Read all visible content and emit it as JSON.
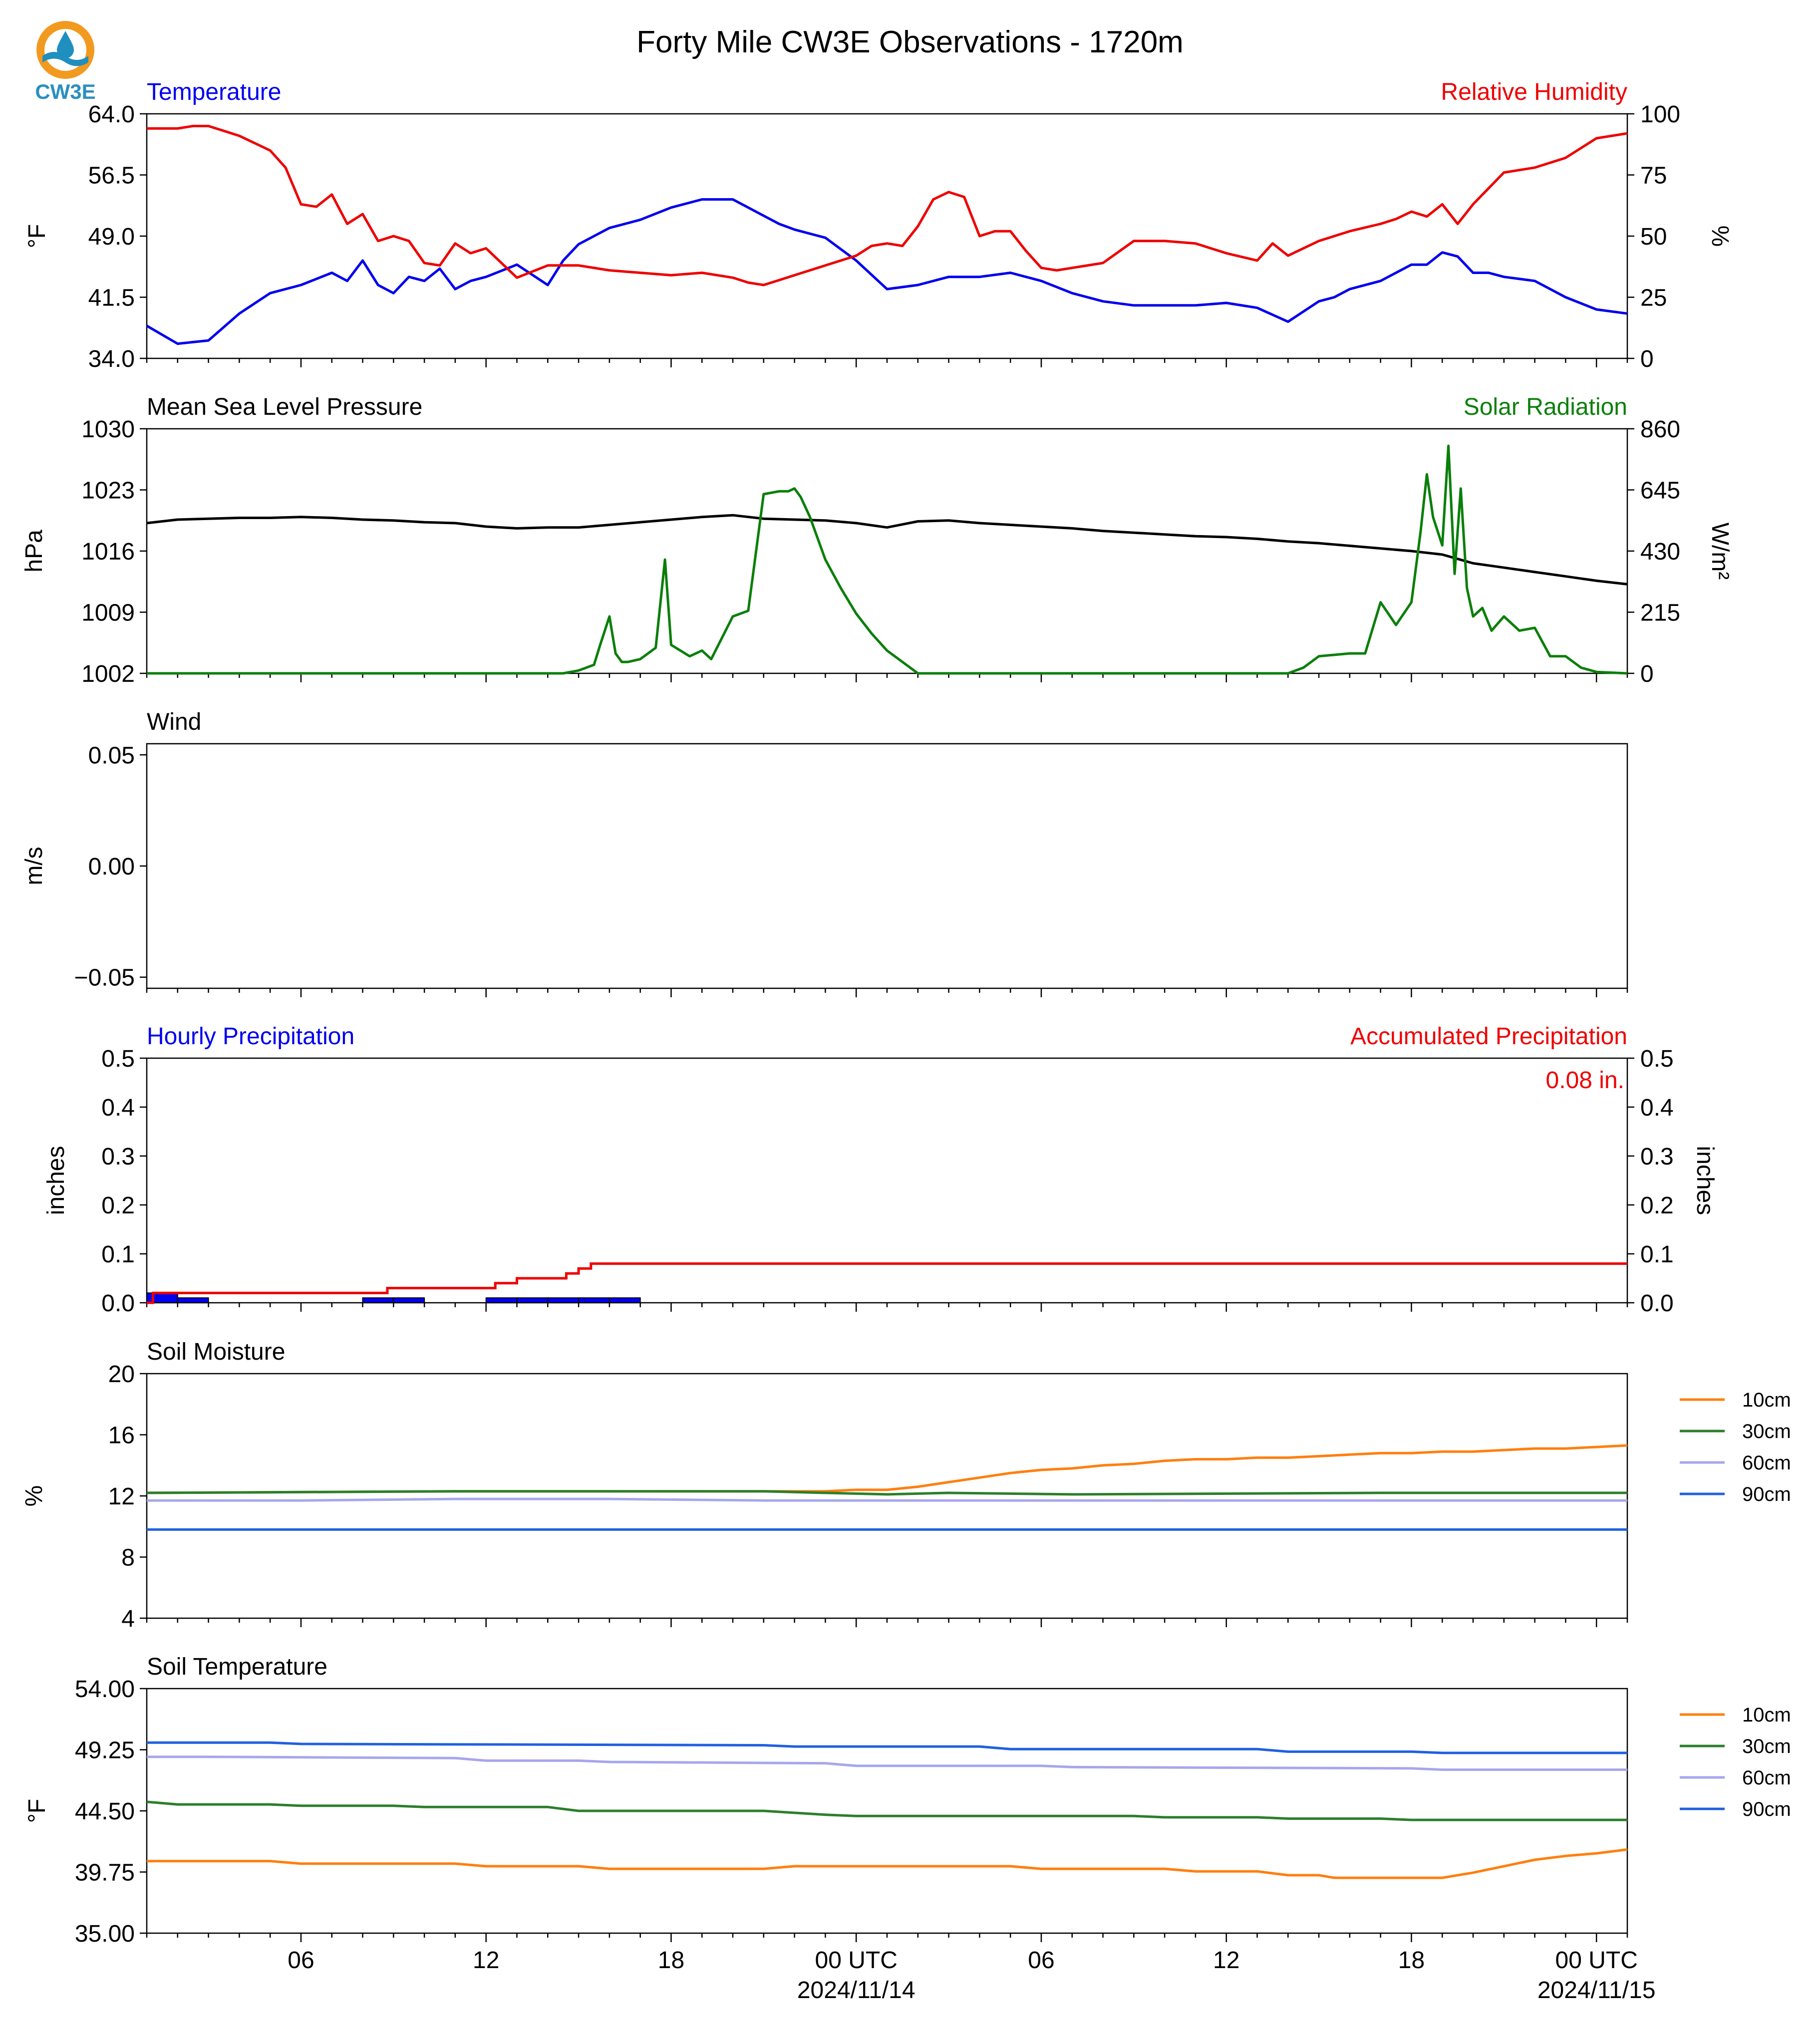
{
  "figure_title": "Forty Mile CW3E Observations - 1720m",
  "logo": {
    "text": "CW3E",
    "icon": "water-drop-sun-logo",
    "ring_color": "#f29a1f",
    "wave_color": "#1f8fbf",
    "text_color": "#2a8fbf"
  },
  "x_axis": {
    "start_hour_offset": 0,
    "end_hour_offset": 48,
    "tick_labels": [
      {
        "hour": 5,
        "label": "06"
      },
      {
        "hour": 11,
        "label": "12"
      },
      {
        "hour": 17,
        "label": "18"
      },
      {
        "hour": 23,
        "label": "00 UTC",
        "sublabel": "2024/11/14"
      },
      {
        "hour": 29,
        "label": "06"
      },
      {
        "hour": 35,
        "label": "12"
      },
      {
        "hour": 41,
        "label": "18"
      },
      {
        "hour": 47,
        "label": "00 UTC",
        "sublabel": "2024/11/15"
      }
    ]
  },
  "chart_data": [
    {
      "type": "line",
      "id": "temperature-rh",
      "title_left": "Temperature",
      "title_left_color": "#0000ee",
      "title_right": "Relative Humidity",
      "title_right_color": "#ee0000",
      "ylabel_left": "°F",
      "ylabel_right": "%",
      "ylim_left": [
        34.0,
        64.0
      ],
      "yticks_left": [
        "34.0",
        "41.5",
        "49.0",
        "56.5",
        "64.0"
      ],
      "ylim_right": [
        0,
        100
      ],
      "yticks_right": [
        "0",
        "25",
        "50",
        "75",
        "100"
      ],
      "series": [
        {
          "axis": "left",
          "color": "#0000ee",
          "x": [
            0,
            1,
            2,
            3,
            4,
            5,
            6,
            6.5,
            7,
            7.5,
            8,
            8.5,
            9,
            9.5,
            10,
            10.5,
            11,
            12,
            13,
            13.5,
            14,
            15,
            16,
            17,
            18,
            19,
            19.5,
            20,
            20.5,
            21,
            22,
            23,
            24,
            25,
            26,
            27,
            28,
            29,
            30,
            31,
            32,
            33,
            34,
            35,
            36,
            37,
            38,
            38.5,
            39,
            40,
            40.5,
            41,
            41.5,
            42,
            42.5,
            43,
            43.5,
            44,
            45,
            46,
            47,
            48
          ],
          "y": [
            38.0,
            35.8,
            36.2,
            39.5,
            42.0,
            43.0,
            44.5,
            43.5,
            46.0,
            43.0,
            42.0,
            44.0,
            43.5,
            45.0,
            42.5,
            43.5,
            44.0,
            45.5,
            43.0,
            46.0,
            48.0,
            50.0,
            51.0,
            52.5,
            53.5,
            53.5,
            52.5,
            51.5,
            50.5,
            49.8,
            48.8,
            46.0,
            42.5,
            43.0,
            44.0,
            44.0,
            44.5,
            43.5,
            42.0,
            41.0,
            40.5,
            40.5,
            40.5,
            40.8,
            40.2,
            38.5,
            41.0,
            41.5,
            42.5,
            43.5,
            44.5,
            45.5,
            45.5,
            47.0,
            46.5,
            44.5,
            44.5,
            44.0,
            43.5,
            41.5,
            40.0,
            39.5
          ]
        },
        {
          "axis": "right",
          "color": "#ee0000",
          "x": [
            0,
            1,
            1.5,
            2,
            2.5,
            3,
            3.5,
            4,
            4.5,
            5,
            5.5,
            6,
            6.5,
            7,
            7.5,
            8,
            8.5,
            9,
            9.5,
            10,
            10.5,
            11,
            12,
            13,
            14,
            15,
            16,
            17,
            18,
            19,
            19.5,
            20,
            20.5,
            21,
            22,
            23,
            23.5,
            24,
            24.5,
            25,
            25.5,
            26,
            26.5,
            27,
            27.5,
            28,
            28.5,
            29,
            29.5,
            30,
            31,
            32,
            33,
            34,
            35,
            36,
            36.5,
            37,
            38,
            39,
            40,
            40.5,
            41,
            41.5,
            42,
            42.5,
            43,
            44,
            45,
            46,
            47,
            48
          ],
          "y": [
            94,
            94,
            95,
            95,
            93,
            91,
            88,
            85,
            78,
            63,
            62,
            67,
            55,
            59,
            48,
            50,
            48,
            39,
            38,
            47,
            43,
            45,
            33,
            38,
            38,
            36,
            35,
            34,
            35,
            33,
            31,
            30,
            32,
            34,
            38,
            42,
            46,
            47,
            46,
            54,
            65,
            68,
            66,
            50,
            52,
            52,
            44,
            37,
            36,
            37,
            39,
            48,
            48,
            47,
            43,
            40,
            47,
            42,
            48,
            52,
            55,
            57,
            60,
            58,
            63,
            55,
            63,
            76,
            78,
            82,
            90,
            92
          ]
        }
      ]
    },
    {
      "type": "line",
      "id": "pressure-solar",
      "title_left": "Mean Sea Level Pressure",
      "title_left_color": "#000000",
      "title_right": "Solar Radiation",
      "title_right_color": "#0a7f0a",
      "ylabel_left": "hPa",
      "ylabel_right": "W/m²",
      "ylim_left": [
        1002,
        1030
      ],
      "yticks_left": [
        "1002",
        "1009",
        "1016",
        "1023",
        "1030"
      ],
      "ylim_right": [
        0,
        860
      ],
      "yticks_right": [
        "0",
        "215",
        "430",
        "645",
        "860"
      ],
      "series": [
        {
          "axis": "left",
          "color": "#000000",
          "x": [
            0,
            1,
            2,
            3,
            4,
            5,
            6,
            7,
            8,
            9,
            10,
            11,
            12,
            13,
            14,
            15,
            16,
            17,
            18,
            19,
            20,
            21,
            22,
            23,
            24,
            25,
            26,
            27,
            28,
            29,
            30,
            31,
            32,
            33,
            34,
            35,
            36,
            37,
            38,
            39,
            40,
            41,
            42,
            43,
            44,
            45,
            46,
            47,
            48
          ],
          "y": [
            1019.2,
            1019.6,
            1019.7,
            1019.8,
            1019.8,
            1019.9,
            1019.8,
            1019.6,
            1019.5,
            1019.3,
            1019.2,
            1018.8,
            1018.6,
            1018.7,
            1018.7,
            1019.0,
            1019.3,
            1019.6,
            1019.9,
            1020.1,
            1019.7,
            1019.6,
            1019.5,
            1019.2,
            1018.7,
            1019.4,
            1019.5,
            1019.2,
            1019.0,
            1018.8,
            1018.6,
            1018.3,
            1018.1,
            1017.9,
            1017.7,
            1017.6,
            1017.4,
            1017.1,
            1016.9,
            1016.6,
            1016.3,
            1016.0,
            1015.6,
            1014.6,
            1014.1,
            1013.6,
            1013.1,
            1012.6,
            1012.2
          ]
        },
        {
          "axis": "right",
          "color": "#0a7f0a",
          "x": [
            0,
            13.5,
            14,
            14.5,
            14.7,
            15,
            15.2,
            15.4,
            15.6,
            16,
            16.5,
            16.8,
            17,
            17.3,
            17.6,
            18,
            18.3,
            19,
            19.5,
            20,
            20.5,
            20.8,
            21,
            21.2,
            21.5,
            22,
            22.5,
            23,
            23.5,
            24,
            25,
            30,
            36,
            37,
            37.5,
            38,
            39,
            39.5,
            40,
            40.5,
            41,
            41.3,
            41.5,
            41.7,
            42,
            42.2,
            42.4,
            42.6,
            42.8,
            43,
            43.3,
            43.6,
            44,
            44.5,
            45,
            45.5,
            46,
            46.5,
            47,
            48
          ],
          "y": [
            0,
            0,
            10,
            30,
            100,
            200,
            70,
            40,
            40,
            50,
            90,
            400,
            100,
            80,
            60,
            80,
            50,
            200,
            220,
            630,
            640,
            640,
            650,
            620,
            550,
            400,
            300,
            210,
            140,
            80,
            0,
            0,
            0,
            0,
            20,
            60,
            70,
            70,
            250,
            170,
            250,
            500,
            700,
            550,
            450,
            800,
            350,
            650,
            300,
            200,
            230,
            150,
            200,
            150,
            160,
            60,
            60,
            20,
            5,
            0
          ]
        }
      ]
    },
    {
      "type": "line",
      "id": "wind",
      "title_left": "Wind",
      "ylabel_left": "m/s",
      "ylim_left": [
        -0.055,
        0.055
      ],
      "yticks_left": [
        "−0.05",
        "0.00",
        "0.05"
      ],
      "series": []
    },
    {
      "type": "bar",
      "id": "precipitation",
      "title_left": "Hourly Precipitation",
      "title_left_color": "#0000ee",
      "title_right": "Accumulated Precipitation",
      "title_right_color": "#ee0000",
      "ylabel_left": "inches",
      "ylabel_right": "inches",
      "ylim_left": [
        0,
        0.5
      ],
      "yticks_left": [
        "0.0",
        "0.1",
        "0.2",
        "0.3",
        "0.4",
        "0.5"
      ],
      "ylim_right": [
        0,
        0.5
      ],
      "yticks_right": [
        "0.0",
        "0.1",
        "0.2",
        "0.3",
        "0.4",
        "0.5"
      ],
      "annotation": "0.08 in.",
      "annotation_color": "#ee0000",
      "hourly_bars": {
        "color": "#0000ee",
        "edge_color": "#000000",
        "x": [
          0,
          1,
          7,
          8,
          11,
          12,
          13,
          14,
          15
        ],
        "values": [
          0.02,
          0.01,
          0.01,
          0.01,
          0.01,
          0.01,
          0.01,
          0.01,
          0.01
        ]
      },
      "accumulated": {
        "color": "#ee0000",
        "x": [
          0,
          0.2,
          7.4,
          7.8,
          11.3,
          12,
          13.2,
          13.6,
          14.0,
          14.4,
          48
        ],
        "y": [
          0.0,
          0.02,
          0.02,
          0.03,
          0.04,
          0.05,
          0.05,
          0.06,
          0.07,
          0.08,
          0.08
        ]
      }
    },
    {
      "type": "line",
      "id": "soil-moisture",
      "title_left": "Soil Moisture",
      "ylabel_left": "%",
      "ylim_left": [
        4,
        20
      ],
      "yticks_left": [
        "4",
        "8",
        "12",
        "16",
        "20"
      ],
      "legend_placement": "right",
      "series": [
        {
          "name": "10cm",
          "color": "#ff7f0e",
          "x": [
            0,
            10,
            20,
            22,
            23,
            24,
            25,
            26,
            27,
            28,
            29,
            30,
            31,
            32,
            33,
            34,
            35,
            36,
            37,
            38,
            39,
            40,
            41,
            42,
            43,
            44,
            45,
            46,
            47,
            48
          ],
          "y": [
            12.2,
            12.3,
            12.3,
            12.3,
            12.4,
            12.4,
            12.6,
            12.9,
            13.2,
            13.5,
            13.7,
            13.8,
            14.0,
            14.1,
            14.3,
            14.4,
            14.4,
            14.5,
            14.5,
            14.6,
            14.7,
            14.8,
            14.8,
            14.9,
            14.9,
            15.0,
            15.1,
            15.1,
            15.2,
            15.3
          ]
        },
        {
          "name": "30cm",
          "color": "#2a7f2a",
          "x": [
            0,
            10,
            20,
            22,
            24,
            26,
            30,
            40,
            48
          ],
          "y": [
            12.2,
            12.3,
            12.3,
            12.2,
            12.1,
            12.2,
            12.1,
            12.2,
            12.2
          ]
        },
        {
          "name": "60cm",
          "color": "#a6a6ee",
          "x": [
            0,
            5,
            10,
            15,
            20,
            25,
            30,
            35,
            40,
            48
          ],
          "y": [
            11.7,
            11.7,
            11.8,
            11.8,
            11.7,
            11.7,
            11.7,
            11.7,
            11.7,
            11.7
          ]
        },
        {
          "name": "90cm",
          "color": "#2060e0",
          "x": [
            0,
            12,
            14,
            20,
            25,
            30,
            35,
            40,
            48
          ],
          "y": [
            9.8,
            9.8,
            9.8,
            9.8,
            9.8,
            9.8,
            9.8,
            9.8,
            9.8
          ]
        }
      ]
    },
    {
      "type": "line",
      "id": "soil-temperature",
      "title_left": "Soil Temperature",
      "ylabel_left": "°F",
      "ylim_left": [
        35.0,
        54.0
      ],
      "yticks_left": [
        "35.00",
        "39.75",
        "44.50",
        "49.25",
        "54.00"
      ],
      "legend_placement": "right",
      "series": [
        {
          "name": "10cm",
          "color": "#ff7f0e",
          "x": [
            0,
            4,
            5,
            10,
            11,
            14,
            15,
            20,
            21,
            28,
            29,
            33,
            34,
            36,
            37,
            38,
            38.5,
            42,
            43,
            44,
            45,
            46,
            47,
            48
          ],
          "y": [
            40.6,
            40.6,
            40.4,
            40.4,
            40.2,
            40.2,
            40.0,
            40.0,
            40.2,
            40.2,
            40.0,
            40.0,
            39.8,
            39.8,
            39.5,
            39.5,
            39.3,
            39.3,
            39.7,
            40.2,
            40.7,
            41.0,
            41.2,
            41.5
          ]
        },
        {
          "name": "30cm",
          "color": "#2a7f2a",
          "x": [
            0,
            1,
            4,
            5,
            8,
            9,
            13,
            14,
            20,
            22,
            23,
            32,
            33,
            36,
            37,
            40,
            41,
            48
          ],
          "y": [
            45.2,
            45.0,
            45.0,
            44.9,
            44.9,
            44.8,
            44.8,
            44.5,
            44.5,
            44.2,
            44.1,
            44.1,
            44.0,
            44.0,
            43.9,
            43.9,
            43.8,
            43.8
          ]
        },
        {
          "name": "60cm",
          "color": "#a6a6ee",
          "x": [
            0,
            2,
            10,
            11,
            14,
            15,
            22,
            23,
            29,
            30,
            41,
            42,
            48
          ],
          "y": [
            48.7,
            48.7,
            48.6,
            48.4,
            48.4,
            48.3,
            48.2,
            48.0,
            48.0,
            47.9,
            47.8,
            47.7,
            47.7
          ]
        },
        {
          "name": "90cm",
          "color": "#2060e0",
          "x": [
            0,
            4,
            5,
            20,
            21,
            27,
            28,
            36,
            37,
            41,
            42,
            48
          ],
          "y": [
            49.8,
            49.8,
            49.7,
            49.6,
            49.5,
            49.5,
            49.3,
            49.3,
            49.1,
            49.1,
            49.0,
            49.0
          ]
        }
      ]
    }
  ]
}
